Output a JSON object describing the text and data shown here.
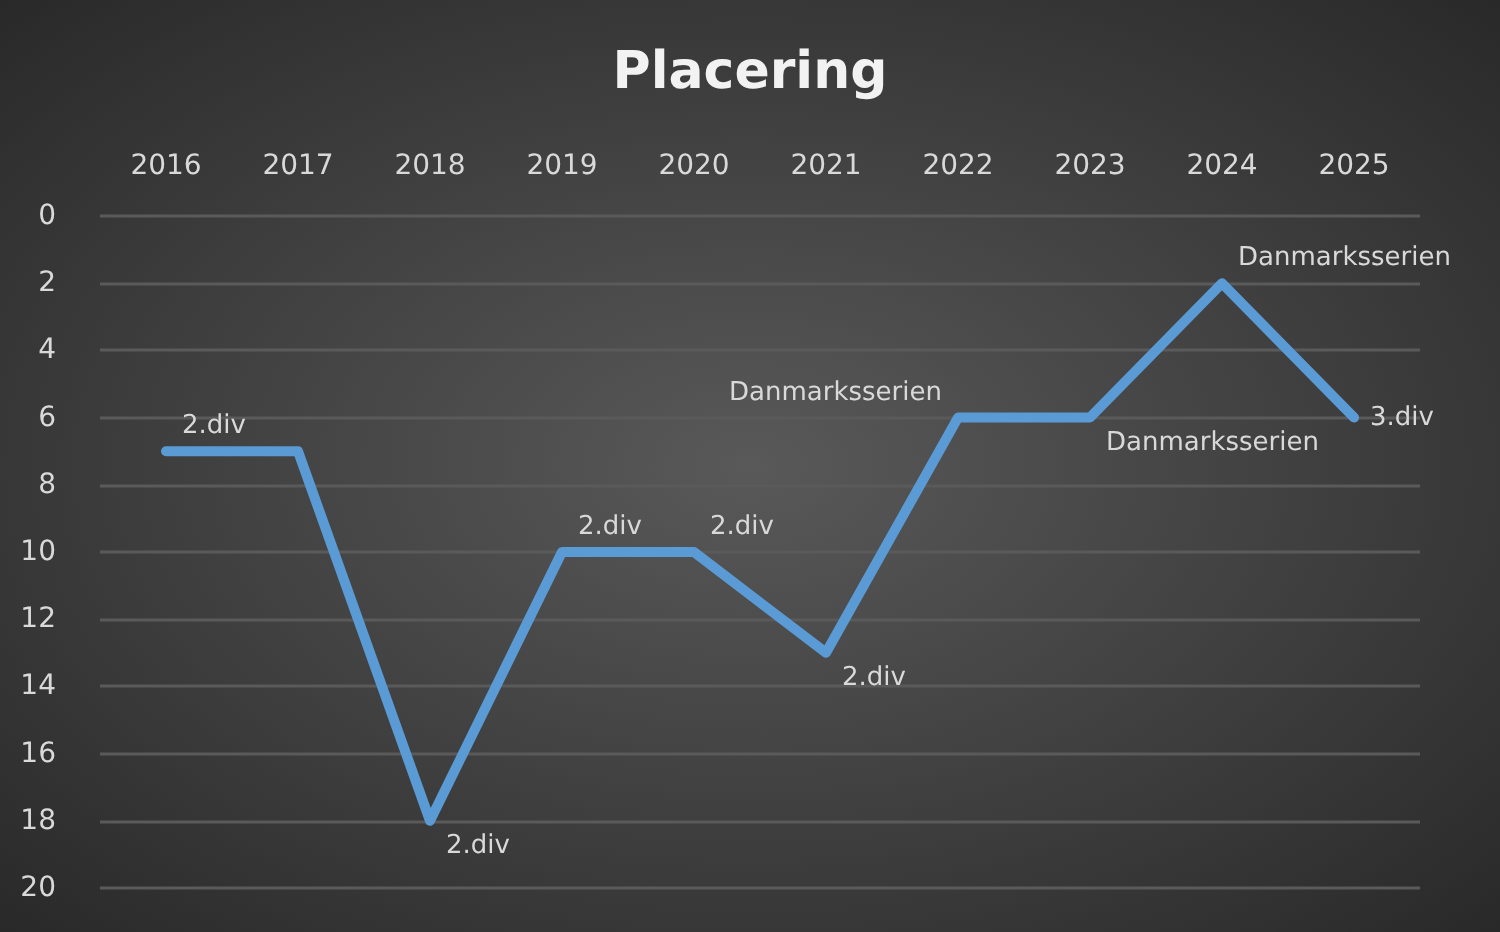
{
  "chart_data": {
    "type": "line",
    "title": "Placering",
    "categories": [
      "2016",
      "2017",
      "2018",
      "2019",
      "2020",
      "2021",
      "2022",
      "2023",
      "2024",
      "2025"
    ],
    "series": [
      {
        "color": "#5b9bd5",
        "values": [
          7,
          7,
          18,
          10,
          10,
          13,
          6,
          6,
          2,
          6
        ]
      }
    ],
    "annotations": [
      {
        "text": "2.div",
        "x": "2016",
        "y": 7
      },
      {
        "text": "2.div",
        "x": "2018",
        "y": 18
      },
      {
        "text": "2.div",
        "x": "2019",
        "y": 10
      },
      {
        "text": "2.div",
        "x": "2020",
        "y": 10
      },
      {
        "text": "2.div",
        "x": "2021",
        "y": 13
      },
      {
        "text": "Danmarksserien",
        "x": "2022",
        "y": 6
      },
      {
        "text": "Danmarksserien",
        "x": "2023",
        "y": 6
      },
      {
        "text": "Danmarksserien",
        "x": "2024",
        "y": 2
      },
      {
        "text": "3.div",
        "x": "2025",
        "y": 6
      }
    ],
    "ylim": [
      20,
      0
    ],
    "yticks": [
      0,
      2,
      4,
      6,
      8,
      10,
      12,
      14,
      16,
      18,
      20
    ],
    "grid": "y",
    "marker": "none",
    "line_style": "solid"
  }
}
